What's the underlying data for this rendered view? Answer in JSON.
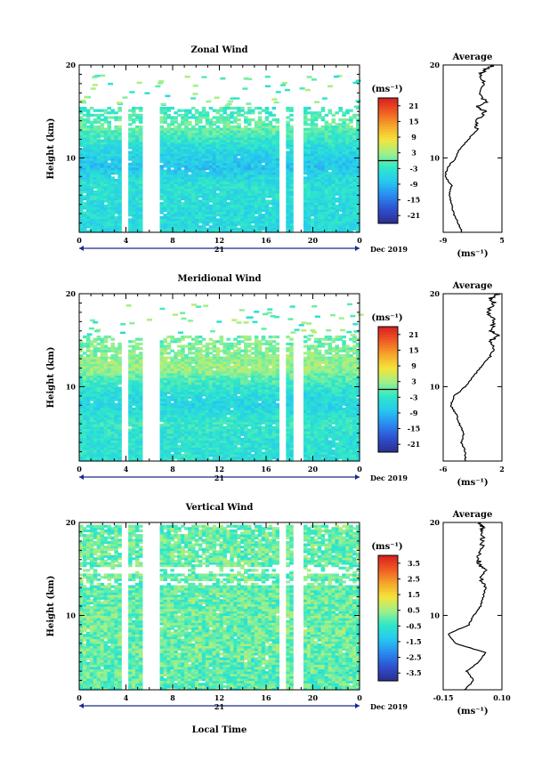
{
  "panels": [
    {
      "title": "Zonal Wind",
      "ylabel": "Height (km)",
      "unit": "(ms⁻¹)",
      "yticks": [
        "20",
        "10"
      ],
      "ylim": [
        2,
        20
      ],
      "xticks": [
        "0",
        "4",
        "8",
        "12",
        "16",
        "20",
        "0"
      ],
      "date_day": "21",
      "date_month": "Dec 2019",
      "colorbar": {
        "ticks": [
          "21",
          "15",
          "9",
          "3",
          "-3",
          "-9",
          "-15",
          "-21"
        ],
        "range": [
          -24,
          24
        ]
      },
      "avg": {
        "title": "Average",
        "xticks": [
          "-9",
          "5"
        ],
        "xlim": [
          -9,
          5
        ],
        "unit": "(ms⁻¹)",
        "ytick": "10"
      }
    },
    {
      "title": "Meridional Wind",
      "ylabel": "Height (km)",
      "unit": "(ms⁻¹)",
      "yticks": [
        "20",
        "10"
      ],
      "ylim": [
        2,
        20
      ],
      "xticks": [
        "0",
        "4",
        "8",
        "12",
        "16",
        "20",
        "0"
      ],
      "date_day": "21",
      "date_month": "Dec 2019",
      "colorbar": {
        "ticks": [
          "21",
          "15",
          "9",
          "3",
          "-3",
          "-9",
          "-15",
          "-21"
        ],
        "range": [
          -24,
          24
        ]
      },
      "avg": {
        "title": "Average",
        "xticks": [
          "-6",
          "2"
        ],
        "xlim": [
          -6,
          2
        ],
        "unit": "(ms⁻¹)",
        "ytick": "10"
      }
    },
    {
      "title": "Vertical Wind",
      "ylabel": "Height (km)",
      "unit": "(ms⁻¹)",
      "yticks": [
        "20",
        "10"
      ],
      "ylim": [
        2,
        20
      ],
      "xticks": [
        "0",
        "4",
        "8",
        "12",
        "16",
        "20",
        "0"
      ],
      "date_day": "21",
      "date_month": "Dec 2019",
      "colorbar": {
        "ticks": [
          "3.5",
          "2.5",
          "1.5",
          "0.5",
          "-0.5",
          "-1.5",
          "-2.5",
          "-3.5"
        ],
        "range": [
          -4,
          4
        ]
      },
      "avg": {
        "title": "Average",
        "xticks": [
          "-0.15",
          "0.10"
        ],
        "xlim": [
          -0.15,
          0.1
        ],
        "unit": "(ms⁻¹)",
        "ytick": "10"
      }
    }
  ],
  "xlabel": "Local Time",
  "colors": {
    "colormap": [
      "#2b2f8c",
      "#2f4fd0",
      "#2a8af0",
      "#27c8f0",
      "#2fe8c8",
      "#9ef08a",
      "#f5e43a",
      "#f5a62a",
      "#f05a24",
      "#d61f1f"
    ],
    "zero_contour": "#000000"
  },
  "chart_data": [
    {
      "type": "heatmap",
      "title": "Zonal Wind",
      "xlabel": "",
      "ylabel": "Height (km)",
      "x_unit": "hours local time, 21 Dec 2019",
      "xlim": [
        0,
        24
      ],
      "ylim": [
        2,
        20
      ],
      "colorbar_range": [
        -24,
        24
      ],
      "data_gaps_hours": [
        [
          3.6,
          4.0
        ],
        [
          5.6,
          5.9
        ],
        [
          6.2,
          6.6
        ],
        [
          17.2,
          17.6
        ],
        [
          18.5,
          19.0
        ]
      ],
      "profile": [
        {
          "height": 4,
          "value": -5
        },
        {
          "height": 7,
          "value": -4
        },
        {
          "height": 9,
          "value": -8
        },
        {
          "height": 11,
          "value": -5
        },
        {
          "height": 13,
          "value": 0
        },
        {
          "height": 15,
          "value": -2
        },
        {
          "height": 17,
          "value": 0
        }
      ]
    },
    {
      "type": "line",
      "title": "Average",
      "xlabel": "(ms⁻¹)",
      "ylabel": "",
      "xlim": [
        -9,
        5
      ],
      "ylim": [
        2,
        20
      ],
      "x": [
        -4.5,
        -5.5,
        -6.5,
        -7,
        -7.5,
        -7,
        -8.5,
        -8,
        -6,
        -5,
        -3,
        -1,
        -1,
        1,
        -1,
        1,
        0,
        1,
        0,
        1,
        3
      ],
      "y": [
        2,
        3,
        4,
        5,
        6,
        7,
        8,
        9,
        10,
        11,
        12,
        13,
        14,
        15,
        15.5,
        16,
        17,
        18,
        19,
        19.5,
        20
      ]
    },
    {
      "type": "heatmap",
      "title": "Meridional Wind",
      "xlabel": "",
      "ylabel": "Height (km)",
      "x_unit": "hours local time, 21 Dec 2019",
      "xlim": [
        0,
        24
      ],
      "ylim": [
        2,
        20
      ],
      "colorbar_range": [
        -24,
        24
      ],
      "data_gaps_hours": [
        [
          3.6,
          4.0
        ],
        [
          5.6,
          5.9
        ],
        [
          6.2,
          6.6
        ],
        [
          17.2,
          17.6
        ],
        [
          18.5,
          19.0
        ]
      ],
      "profile": [
        {
          "height": 4,
          "value": -4
        },
        {
          "height": 6,
          "value": -3
        },
        {
          "height": 8,
          "value": -6
        },
        {
          "height": 10,
          "value": -3
        },
        {
          "height": 12,
          "value": 3
        },
        {
          "height": 14,
          "value": 1
        },
        {
          "height": 17,
          "value": 0
        }
      ]
    },
    {
      "type": "line",
      "title": "Average",
      "xlabel": "(ms⁻¹)",
      "ylabel": "",
      "xlim": [
        -6,
        2
      ],
      "ylim": [
        2,
        20
      ],
      "x": [
        -3,
        -3,
        -3.5,
        -3.2,
        -3.8,
        -4.2,
        -5,
        -4.5,
        -3,
        -2,
        -1,
        0,
        1,
        0.5,
        1.5,
        0.5,
        1,
        0,
        1,
        0.5,
        1.5
      ],
      "y": [
        2,
        3,
        4,
        5,
        6,
        7,
        8,
        9,
        10,
        11,
        12,
        13,
        14,
        15,
        15.5,
        16,
        17,
        18,
        19,
        19.5,
        20
      ]
    },
    {
      "type": "heatmap",
      "title": "Vertical Wind",
      "xlabel": "Local Time",
      "ylabel": "Height (km)",
      "x_unit": "hours local time, 21 Dec 2019",
      "xlim": [
        0,
        24
      ],
      "ylim": [
        2,
        20
      ],
      "colorbar_range": [
        -4,
        4
      ],
      "data_gaps_hours": [
        [
          3.6,
          4.0
        ],
        [
          5.6,
          5.9
        ],
        [
          6.2,
          6.6
        ],
        [
          17.2,
          17.6
        ],
        [
          18.5,
          19.0
        ]
      ],
      "profile": [
        {
          "height": 4,
          "value": -0.2
        },
        {
          "height": 6,
          "value": 0
        },
        {
          "height": 8,
          "value": 0
        },
        {
          "height": 10,
          "value": 0.1
        },
        {
          "height": 12,
          "value": 0
        },
        {
          "height": 15,
          "value": 0
        },
        {
          "height": 18,
          "value": 0
        }
      ]
    },
    {
      "type": "line",
      "title": "Average",
      "xlabel": "(ms⁻¹)",
      "ylabel": "",
      "xlim": [
        -0.15,
        0.1
      ],
      "ylim": [
        2,
        20
      ],
      "x": [
        -0.06,
        -0.02,
        -0.05,
        0.0,
        0.03,
        -0.1,
        -0.13,
        -0.04,
        -0.02,
        0.01,
        0.02,
        0.03,
        0.01,
        0.03,
        0.0,
        0.0,
        0.01,
        0.02,
        0.01,
        0.02,
        0.0
      ],
      "y": [
        2,
        3,
        4,
        5,
        6,
        7,
        8,
        9,
        10,
        11,
        12,
        13,
        14,
        15,
        15.5,
        16,
        17,
        18,
        19,
        19.5,
        20
      ]
    }
  ]
}
